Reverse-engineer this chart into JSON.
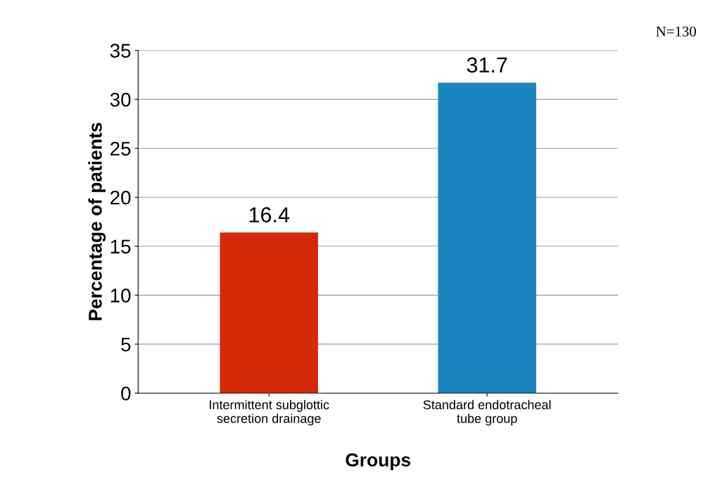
{
  "chart_data": {
    "type": "bar",
    "xlabel": "Groups",
    "ylabel": "Percentage of patients",
    "categories": [
      "Intermittent subglottic\nsecretion drainage",
      "Standard endotracheal\ntube group"
    ],
    "values": [
      16.4,
      31.7
    ],
    "colors": [
      "#d42a0a",
      "#1a86bd"
    ],
    "ylim": [
      0,
      35
    ],
    "yticks": [
      0,
      5,
      10,
      15,
      20,
      25,
      30,
      35
    ],
    "grid": "y",
    "data_labels": true,
    "annotations": [
      "N=130"
    ]
  }
}
